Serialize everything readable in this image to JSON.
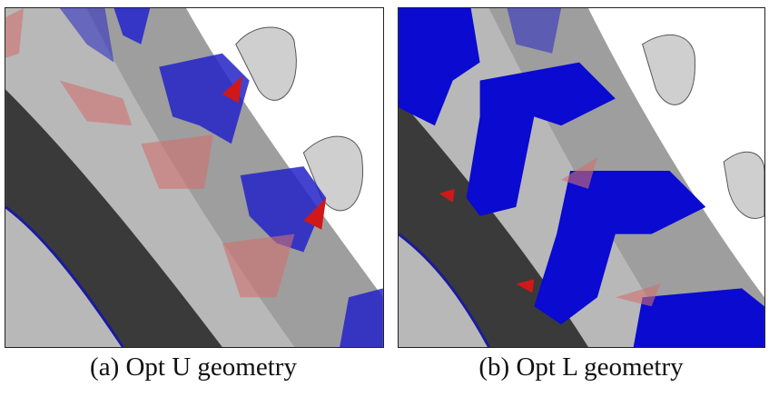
{
  "figure": {
    "panels": [
      {
        "caption": "(a) Opt U geometry"
      },
      {
        "caption": "(b) Opt L geometry"
      }
    ]
  }
}
